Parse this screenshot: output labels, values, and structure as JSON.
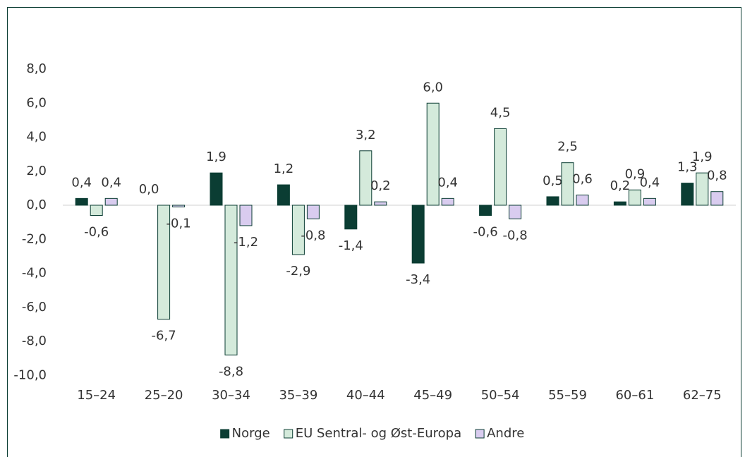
{
  "chart_data": {
    "type": "bar",
    "categories": [
      "15–24",
      "25–20",
      "30–34",
      "35–39",
      "40–44",
      "45–49",
      "50–54",
      "55–59",
      "60–61",
      "62–75"
    ],
    "series": [
      {
        "name": "Norge",
        "color": "#0b3d33",
        "values": [
          0.4,
          0.0,
          1.9,
          1.2,
          -1.4,
          -3.4,
          -0.6,
          0.5,
          0.2,
          1.3
        ],
        "value_labels": [
          "0,4",
          "0,0",
          "1,9",
          "1,2",
          "-1,4",
          "-3,4",
          "-0,6",
          "0,5",
          "0,2",
          "1,3"
        ]
      },
      {
        "name": "EU Sentral- og Øst-Europa",
        "color": "#d4eadb",
        "values": [
          -0.6,
          -6.7,
          -8.8,
          -2.9,
          3.2,
          6.0,
          4.5,
          2.5,
          0.9,
          1.9
        ],
        "value_labels": [
          "-0,6",
          "-6,7",
          "-8,8",
          "-2,9",
          "3,2",
          "6,0",
          "4,5",
          "2,5",
          "0,9",
          "1,9"
        ]
      },
      {
        "name": "Andre",
        "color": "#d9ccef",
        "values": [
          0.4,
          -0.1,
          -1.2,
          -0.8,
          0.2,
          0.4,
          -0.8,
          0.6,
          0.4,
          0.8
        ],
        "value_labels": [
          "0,4",
          "-0,1",
          "-1,2",
          "-0,8",
          "0,2",
          "0,4",
          "-0,8",
          "0,6",
          "0,4",
          "0,8"
        ]
      }
    ],
    "ylim": [
      -10,
      10
    ],
    "yticks": [
      {
        "value": -10,
        "label": "-10,0"
      },
      {
        "value": -8,
        "label": "-8,0"
      },
      {
        "value": -6,
        "label": "-6,0"
      },
      {
        "value": -4,
        "label": "-4,0"
      },
      {
        "value": -2,
        "label": "-2,0"
      },
      {
        "value": 0,
        "label": "0,0"
      },
      {
        "value": 2,
        "label": "2,0"
      },
      {
        "value": 4,
        "label": "4,0"
      },
      {
        "value": 6,
        "label": "6,0"
      },
      {
        "value": 8,
        "label": "8,0"
      }
    ],
    "legend": "bottom"
  }
}
